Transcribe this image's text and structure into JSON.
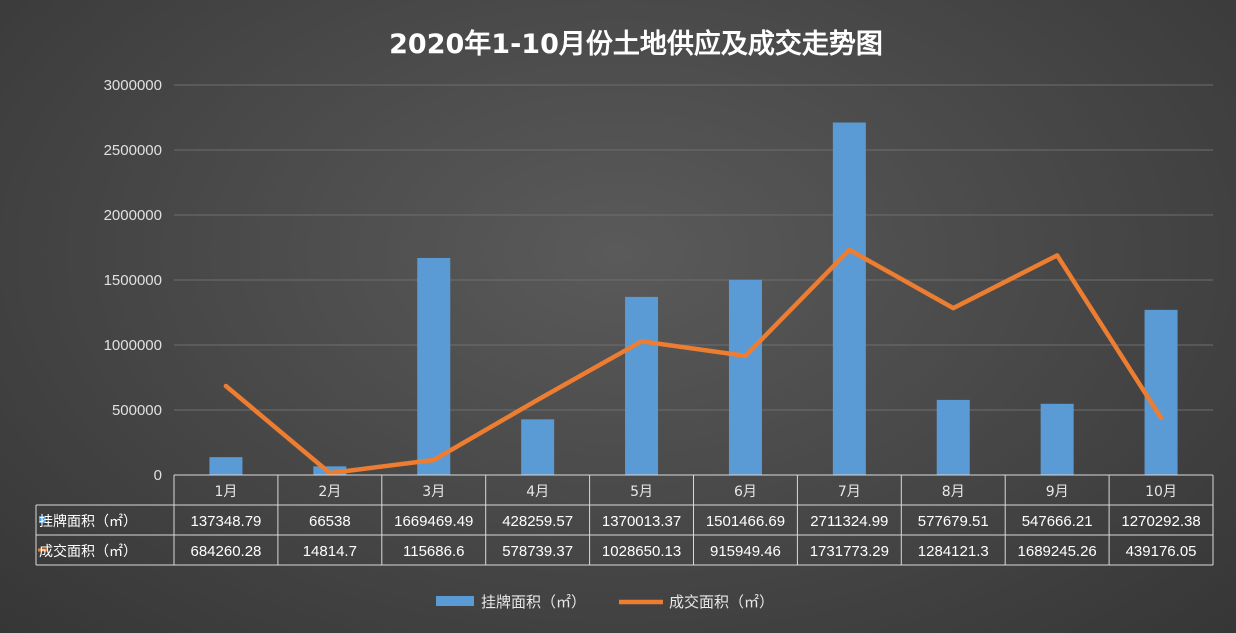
{
  "chart_data": {
    "type": "bar",
    "title": "2020年1-10月份土地供应及成交走势图",
    "categories": [
      "1月",
      "2月",
      "3月",
      "4月",
      "5月",
      "6月",
      "7月",
      "8月",
      "9月",
      "10月"
    ],
    "series": [
      {
        "name": "挂牌面积（㎡）",
        "type": "bar",
        "color": "#5b9bd5",
        "values": [
          137348.79,
          66538,
          1669469.49,
          428259.57,
          1370013.37,
          1501466.69,
          2711324.99,
          577679.51,
          547666.21,
          1270292.38
        ],
        "labels": [
          "137348.79",
          "66538",
          "1669469.49",
          "428259.57",
          "1370013.37",
          "1501466.69",
          "2711324.99",
          "577679.51",
          "547666.21",
          "1270292.38"
        ]
      },
      {
        "name": "成交面积（㎡）",
        "type": "line",
        "color": "#ed7d31",
        "values": [
          684260.28,
          14814.7,
          115686.6,
          578739.37,
          1028650.13,
          915949.46,
          1731773.29,
          1284121.3,
          1689245.26,
          439176.05
        ],
        "labels": [
          "684260.28",
          "14814.7",
          "115686.6",
          "578739.37",
          "1028650.13",
          "915949.46",
          "1731773.29",
          "1284121.3",
          "1689245.26",
          "439176.05"
        ]
      }
    ],
    "ylim": [
      0,
      3000000
    ],
    "yticks": [
      "0",
      "500000",
      "1000000",
      "1500000",
      "2000000",
      "2500000",
      "3000000"
    ],
    "grid": true,
    "data_table": true,
    "legend_position": "bottom"
  }
}
